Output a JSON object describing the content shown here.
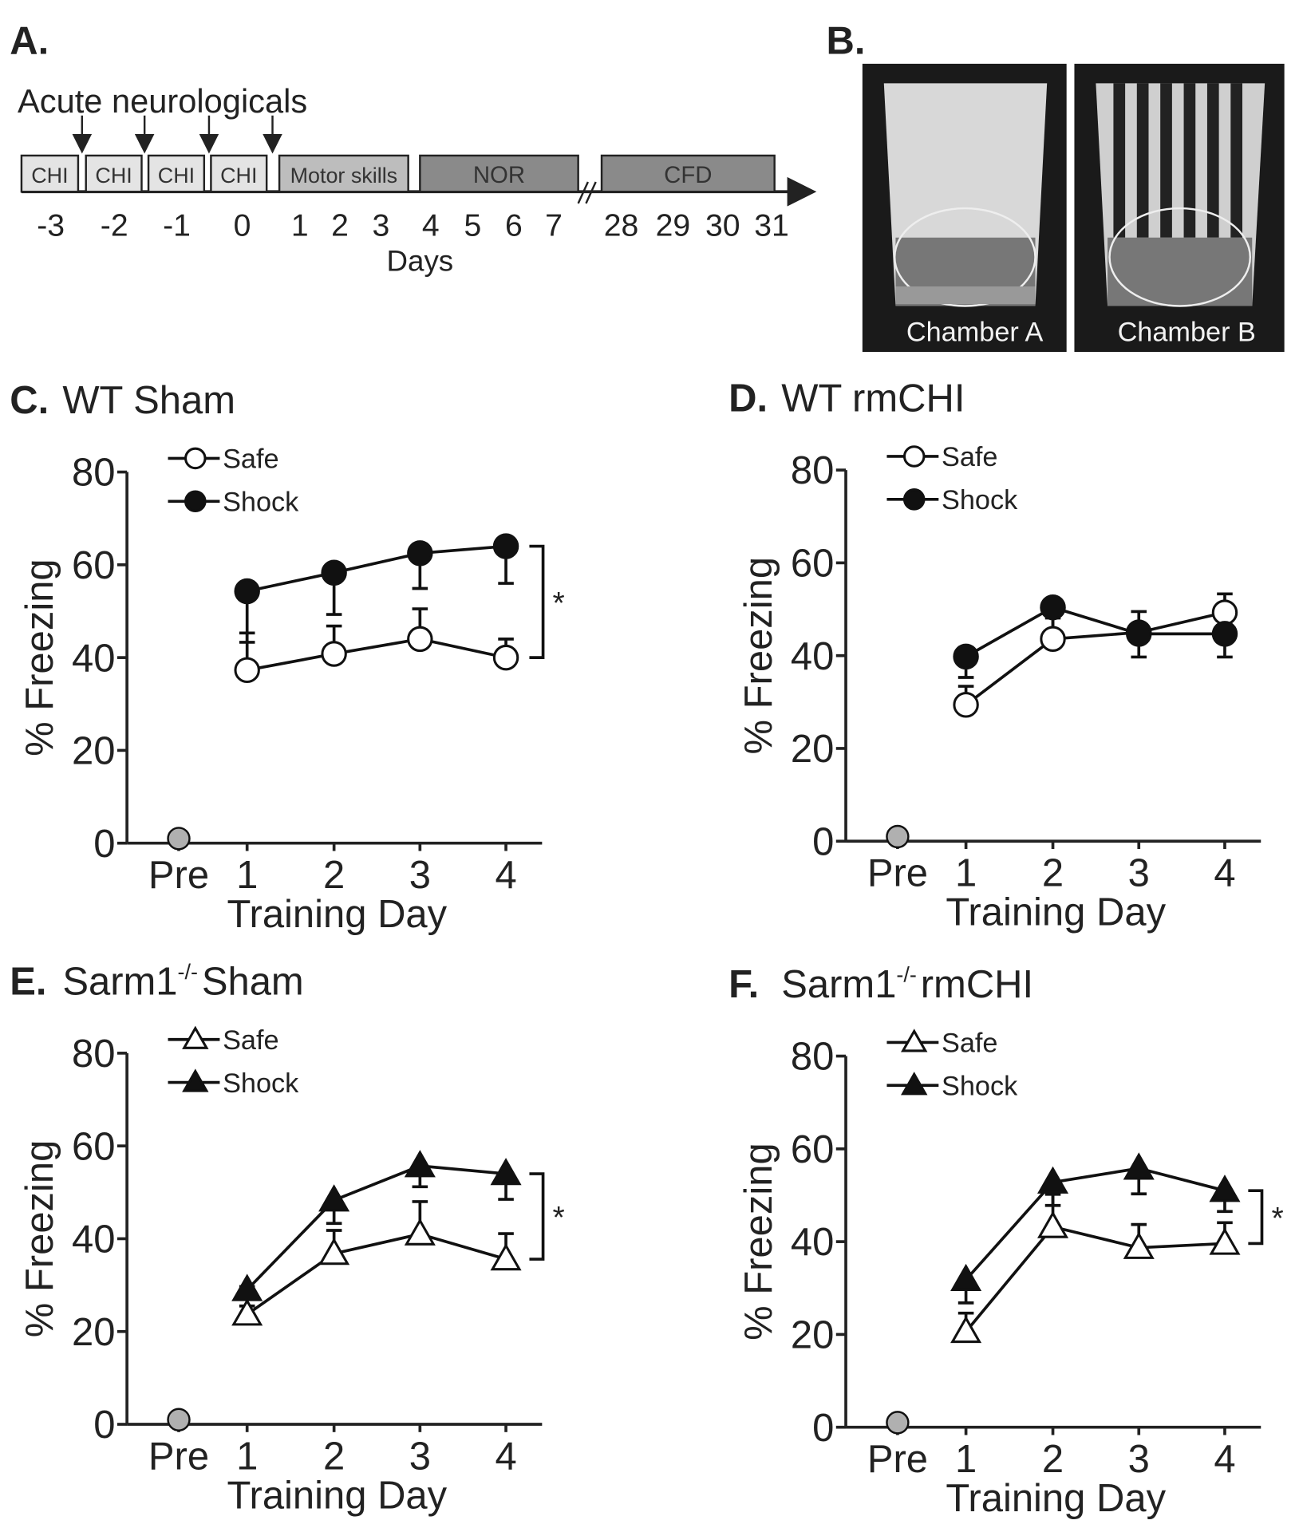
{
  "timeline": {
    "label": "A.",
    "heading": "Acute neurologicals",
    "boxes": [
      "CHI",
      "CHI",
      "CHI",
      "CHI",
      "Motor skills",
      "NOR",
      "CFD"
    ],
    "days": [
      "-3",
      "-2",
      "-1",
      "0",
      "1",
      "2",
      "3",
      "4",
      "5",
      "6",
      "7",
      "28",
      "29",
      "30",
      "31"
    ],
    "axis_label": "Days"
  },
  "photos": {
    "label": "B.",
    "captions": [
      "Chamber A",
      "Chamber B"
    ]
  },
  "chart_data": [
    {
      "type": "line",
      "panel": "C.",
      "title": "WT Sham",
      "ylabel": "% Freezing",
      "xlabel": "Training Day",
      "categories": [
        "Pre",
        "1",
        "2",
        "3",
        "4"
      ],
      "ylim": [
        0,
        80
      ],
      "yticks": [
        0,
        20,
        40,
        60,
        80
      ],
      "grid": false,
      "marker": "circle",
      "pre": {
        "value": 1,
        "color": "#b0b0b0"
      },
      "annotation": "*",
      "series": [
        {
          "name": "Safe",
          "color": "#ffffff",
          "values": [
            null,
            37.3,
            40.8,
            44,
            40
          ],
          "errors": [
            null,
            8,
            6,
            6.5,
            4
          ]
        },
        {
          "name": "Shock",
          "color": "#111111",
          "values": [
            null,
            54.3,
            58.3,
            62.5,
            64
          ],
          "errors": [
            null,
            11,
            9,
            7.6,
            8
          ]
        }
      ]
    },
    {
      "type": "line",
      "panel": "D.",
      "title": "WT rmCHI",
      "ylabel": "% Freezing",
      "xlabel": "Training Day",
      "categories": [
        "Pre",
        "1",
        "2",
        "3",
        "4"
      ],
      "ylim": [
        0,
        80
      ],
      "yticks": [
        0,
        20,
        40,
        60,
        80
      ],
      "grid": false,
      "marker": "circle",
      "pre": {
        "value": 1,
        "color": "#b0b0b0"
      },
      "series": [
        {
          "name": "Safe",
          "color": "#ffffff",
          "values": [
            null,
            29.4,
            43.6,
            45,
            49.3
          ],
          "errors": [
            null,
            4,
            4.5,
            4.5,
            4
          ]
        },
        {
          "name": "Shock",
          "color": "#111111",
          "values": [
            null,
            39.8,
            50.4,
            44.7,
            44.7
          ],
          "errors": [
            null,
            4.5,
            5,
            5,
            5
          ]
        }
      ]
    },
    {
      "type": "line",
      "panel": "E.",
      "title_parts": [
        "Sarm1",
        "-/-",
        "Sham"
      ],
      "ylabel": "% Freezing",
      "xlabel": "Training Day",
      "categories": [
        "Pre",
        "1",
        "2",
        "3",
        "4"
      ],
      "ylim": [
        0,
        80
      ],
      "yticks": [
        0,
        20,
        40,
        60,
        80
      ],
      "grid": false,
      "marker": "triangle",
      "pre": {
        "value": 1,
        "color": "#b0b0b0"
      },
      "annotation": "*",
      "series": [
        {
          "name": "Safe",
          "color": "#ffffff",
          "values": [
            null,
            23.7,
            36.8,
            41,
            35.6
          ],
          "errors": [
            null,
            6,
            5,
            7,
            5.5
          ]
        },
        {
          "name": "Shock",
          "color": "#111111",
          "values": [
            null,
            29,
            48.3,
            55.7,
            54
          ],
          "errors": [
            null,
            3.5,
            5,
            4.5,
            5.5
          ]
        }
      ]
    },
    {
      "type": "line",
      "panel": "F.",
      "title_parts": [
        "Sarm1",
        "-/-",
        "rmCHI"
      ],
      "ylabel": "% Freezing",
      "xlabel": "Training Day",
      "categories": [
        "Pre",
        "1",
        "2",
        "3",
        "4"
      ],
      "ylim": [
        0,
        80
      ],
      "yticks": [
        0,
        20,
        40,
        60,
        80
      ],
      "grid": false,
      "marker": "triangle",
      "pre": {
        "value": 1,
        "color": "#b0b0b0"
      },
      "annotation": "*",
      "series": [
        {
          "name": "Safe",
          "color": "#ffffff",
          "values": [
            null,
            20.6,
            43.2,
            38.7,
            39.6
          ],
          "errors": [
            null,
            4,
            7,
            5,
            4.5
          ]
        },
        {
          "name": "Shock",
          "color": "#111111",
          "values": [
            null,
            31.8,
            52.8,
            55.8,
            51
          ],
          "errors": [
            null,
            5,
            5,
            5.5,
            4.5
          ]
        }
      ]
    }
  ]
}
